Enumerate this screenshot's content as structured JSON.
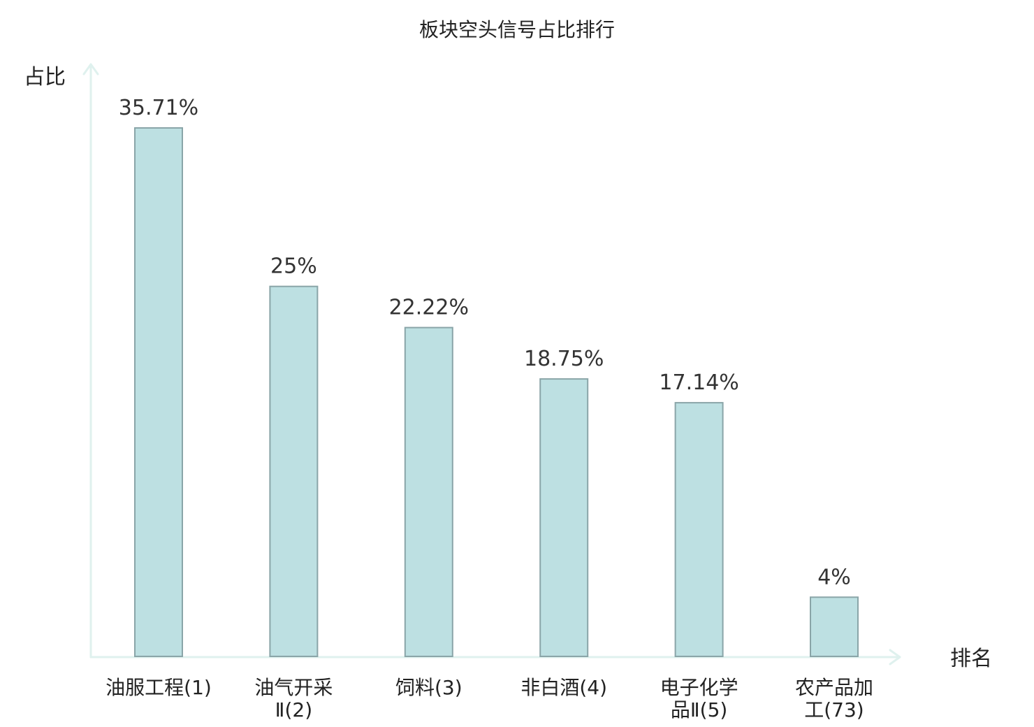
{
  "chart_data": {
    "type": "bar",
    "title": "板块空头信号占比排行",
    "ylabel": "占比",
    "xlabel": "排名",
    "categories": [
      [
        "油服工程(1)"
      ],
      [
        "油气开采",
        "Ⅱ(2)"
      ],
      [
        "饲料(3)"
      ],
      [
        "非白酒(4)"
      ],
      [
        "电子化学",
        "品Ⅱ(5)"
      ],
      [
        "农产品加",
        "工(73)"
      ]
    ],
    "values": [
      35.71,
      25,
      22.22,
      18.75,
      17.14,
      4
    ],
    "value_labels": [
      "35.71%",
      "25%",
      "22.22%",
      "18.75%",
      "17.14%",
      "4%"
    ],
    "highlight_index": 5,
    "ylim": [
      0,
      40
    ],
    "grid": false,
    "colors": {
      "bar_fill": "#bde0e2",
      "bar_stroke": "#8aa5a8",
      "axis": "#dff1ee",
      "text": "#222222",
      "highlight_text": "#e0101a"
    }
  }
}
